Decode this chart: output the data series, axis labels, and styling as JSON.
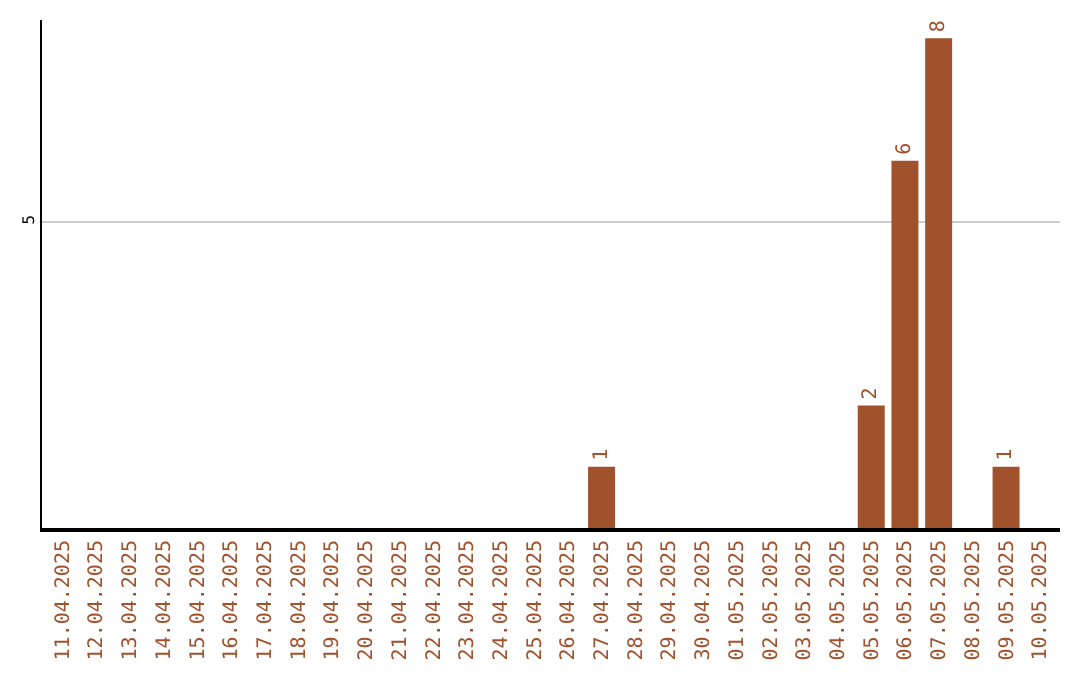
{
  "chart_data": {
    "type": "bar",
    "categories": [
      "11.04.2025",
      "12.04.2025",
      "13.04.2025",
      "14.04.2025",
      "15.04.2025",
      "16.04.2025",
      "17.04.2025",
      "18.04.2025",
      "19.04.2025",
      "20.04.2025",
      "21.04.2025",
      "22.04.2025",
      "23.04.2025",
      "24.04.2025",
      "25.04.2025",
      "26.04.2025",
      "27.04.2025",
      "28.04.2025",
      "29.04.2025",
      "30.04.2025",
      "01.05.2025",
      "02.05.2025",
      "03.05.2025",
      "04.05.2025",
      "05.05.2025",
      "06.05.2025",
      "07.05.2025",
      "08.05.2025",
      "09.05.2025",
      "10.05.2025"
    ],
    "values": [
      null,
      null,
      null,
      null,
      null,
      null,
      null,
      null,
      null,
      null,
      null,
      null,
      null,
      null,
      null,
      null,
      1,
      null,
      null,
      null,
      null,
      null,
      null,
      null,
      2,
      6,
      8,
      null,
      1,
      null
    ],
    "color": "#a0522d",
    "ylim": [
      0,
      8.3
    ],
    "yticks": [
      5
    ],
    "grid": "y",
    "data_labels": true
  }
}
